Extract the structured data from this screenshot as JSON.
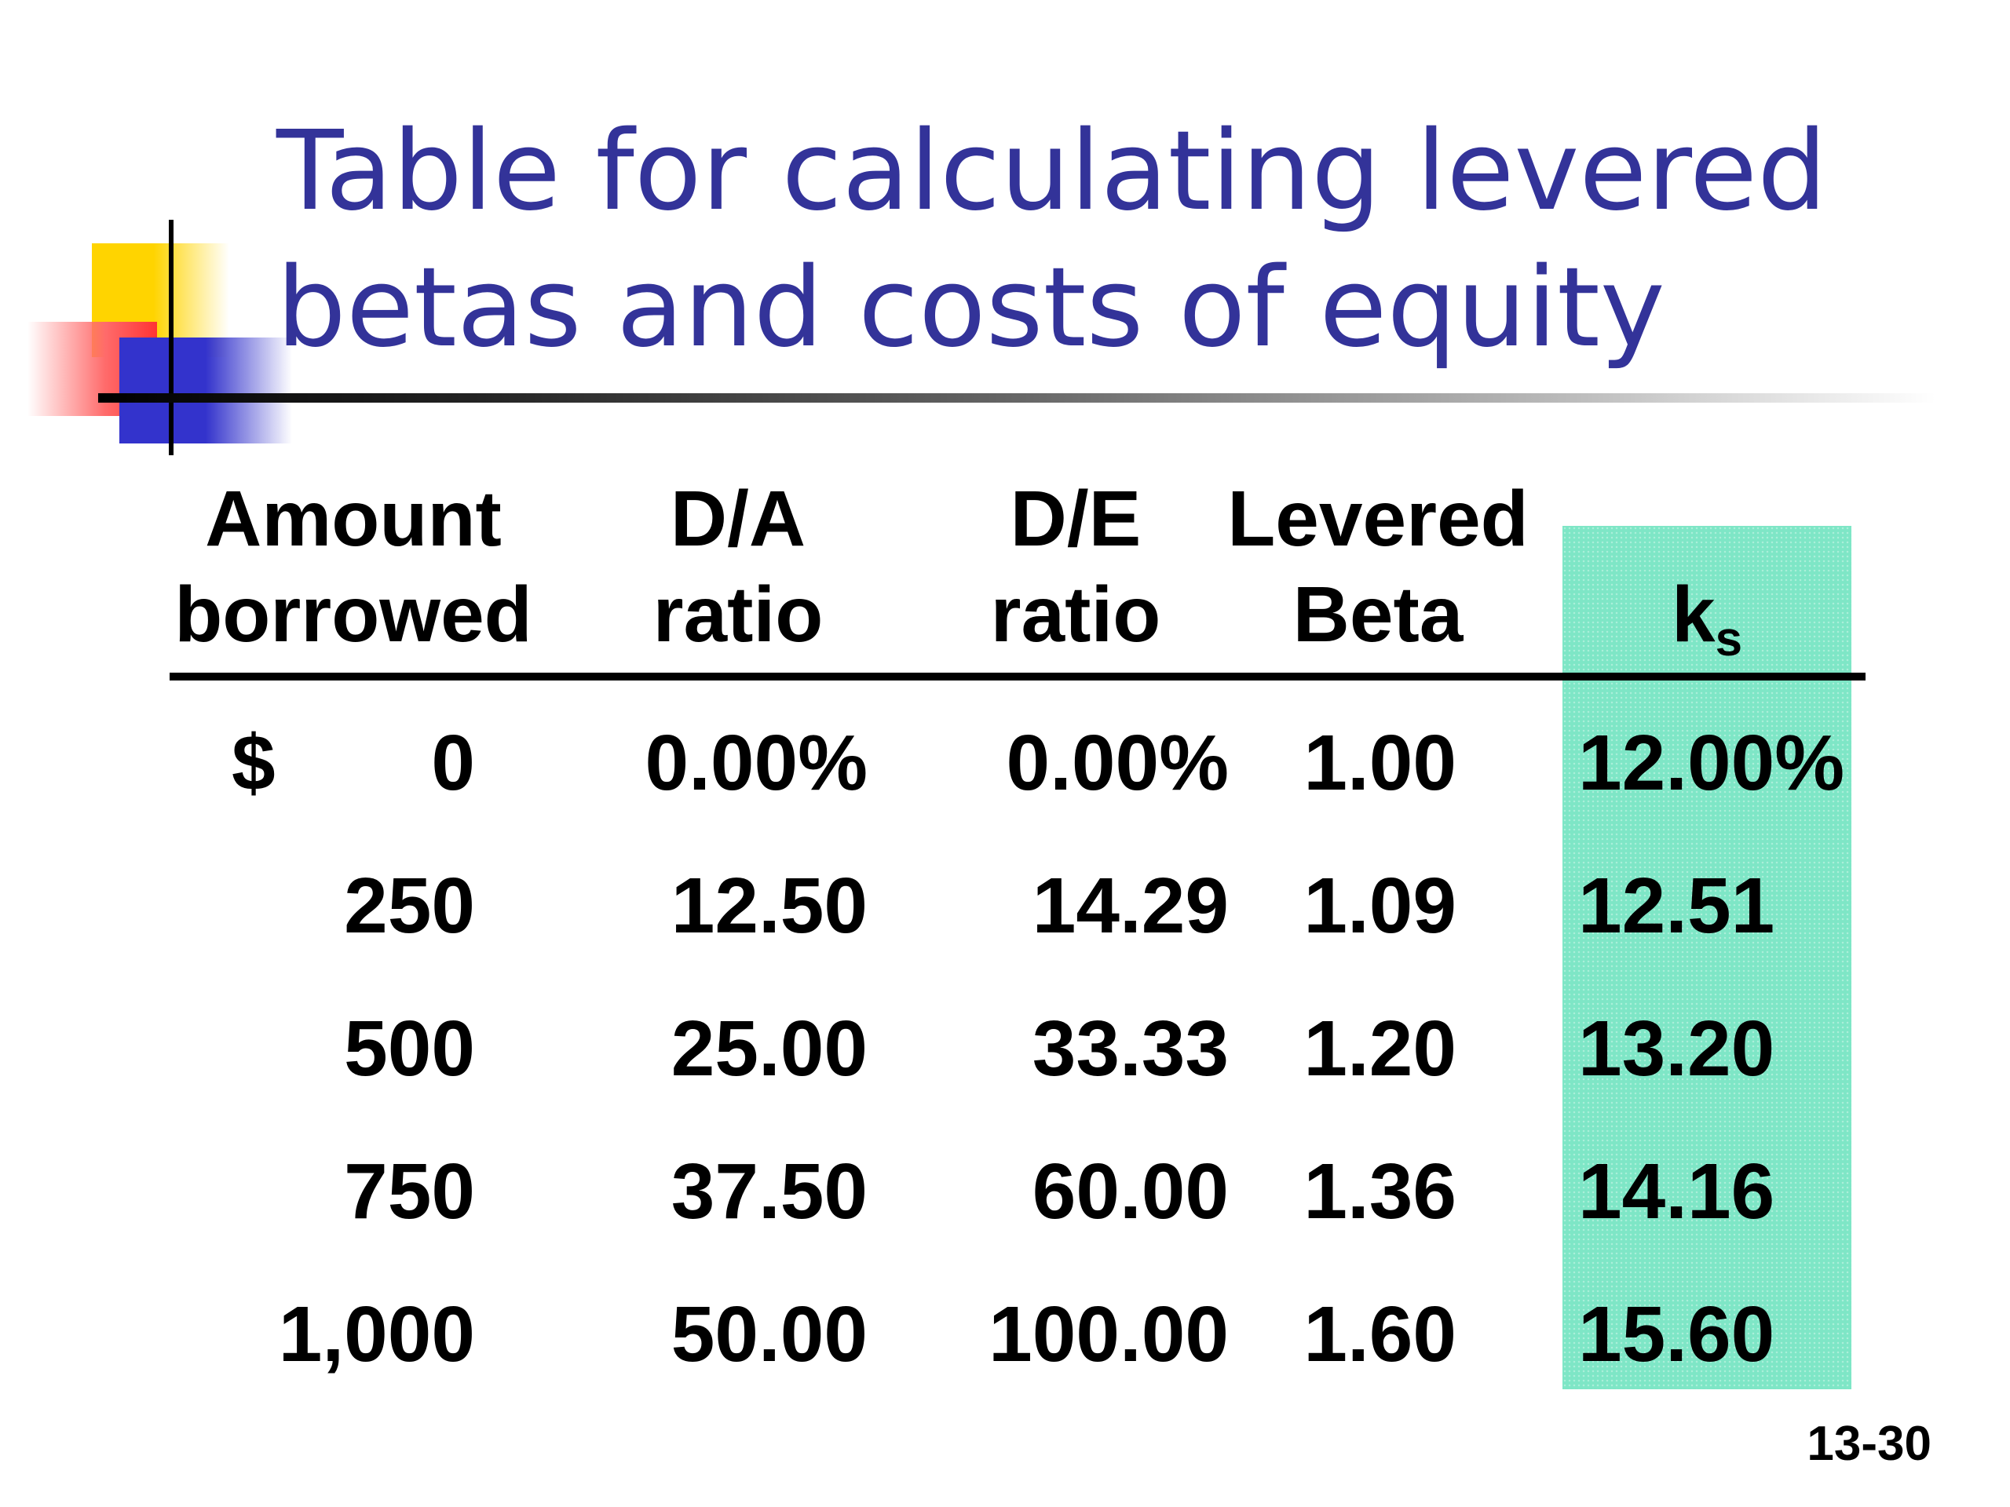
{
  "title": {
    "line1": "Table for calculating levered",
    "line2": "betas and costs of equity"
  },
  "colors": {
    "title": "#333399",
    "highlight": "#7ee6c6",
    "deco_yellow": "#ffd400",
    "deco_red": "#ff3333",
    "deco_blue": "#3333cc"
  },
  "table": {
    "headers": {
      "amount": [
        "Amount",
        "borrowed"
      ],
      "da": [
        "D/A",
        "ratio"
      ],
      "de": [
        "D/E",
        "ratio"
      ],
      "beta": [
        "Levered",
        "Beta"
      ],
      "ks": {
        "base": "k",
        "sub": "s"
      }
    },
    "currency_symbol": "$",
    "rows": [
      {
        "amount": "0",
        "da": "0.00%",
        "de": "0.00%",
        "beta": "1.00",
        "ks": "12.00%"
      },
      {
        "amount": "250",
        "da": "12.50",
        "de": "14.29",
        "beta": "1.09",
        "ks": "12.51"
      },
      {
        "amount": "500",
        "da": "25.00",
        "de": "33.33",
        "beta": "1.20",
        "ks": "13.20"
      },
      {
        "amount": "750",
        "da": "37.50",
        "de": "60.00",
        "beta": "1.36",
        "ks": "14.16"
      },
      {
        "amount": "1,000",
        "da": "50.00",
        "de": "100.00",
        "beta": "1.60",
        "ks": "15.60"
      }
    ]
  },
  "slide_number": "13-30"
}
